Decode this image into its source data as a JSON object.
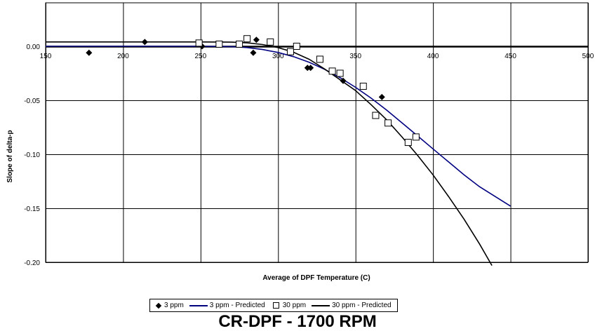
{
  "chart_data": {
    "type": "scatter",
    "title": "CR-DPF - 1700 RPM",
    "xlabel": "Average of DPF Temperature (C)",
    "ylabel": "Slope of delta-p",
    "xlim": [
      150,
      500
    ],
    "ylim": [
      -0.2,
      0.04
    ],
    "x_ticks": [
      150,
      200,
      250,
      300,
      350,
      400,
      450,
      500
    ],
    "y_ticks": [
      0.0,
      -0.05,
      -0.1,
      -0.15,
      -0.2
    ],
    "x_tick_labels": [
      "150",
      "200",
      "250",
      "300",
      "350",
      "400",
      "450",
      "500"
    ],
    "y_tick_labels": [
      "0.00",
      "-0.05",
      "-0.10",
      "-0.15",
      "-0.20"
    ],
    "grid": true,
    "legend_position": "bottom",
    "series": [
      {
        "name": "3 ppm",
        "kind": "markers",
        "marker": "diamond",
        "color": "#000000",
        "points": [
          [
            178,
            -0.006
          ],
          [
            214,
            0.004
          ],
          [
            251,
            0.0
          ],
          [
            284,
            -0.006
          ],
          [
            286,
            0.006
          ],
          [
            319,
            -0.02
          ],
          [
            321,
            -0.02
          ],
          [
            342,
            -0.032
          ],
          [
            367,
            -0.047
          ]
        ]
      },
      {
        "name": "3 ppm - Predicted",
        "kind": "line",
        "color": "#000080",
        "points": [
          [
            150,
            0.0
          ],
          [
            250,
            0.0
          ],
          [
            270,
            -0.0003
          ],
          [
            280,
            -0.0012
          ],
          [
            290,
            -0.003
          ],
          [
            300,
            -0.0057
          ],
          [
            310,
            -0.0096
          ],
          [
            320,
            -0.0148
          ],
          [
            330,
            -0.0213
          ],
          [
            340,
            -0.029
          ],
          [
            350,
            -0.038
          ],
          [
            360,
            -0.048
          ],
          [
            370,
            -0.059
          ],
          [
            380,
            -0.071
          ],
          [
            390,
            -0.083
          ],
          [
            400,
            -0.095
          ],
          [
            410,
            -0.107
          ],
          [
            420,
            -0.119
          ],
          [
            430,
            -0.13
          ],
          [
            440,
            -0.139
          ],
          [
            450,
            -0.148
          ]
        ]
      },
      {
        "name": "30 ppm",
        "kind": "markers",
        "marker": "square",
        "color": "#000000",
        "points": [
          [
            249,
            0.003
          ],
          [
            262,
            0.002
          ],
          [
            275,
            0.002
          ],
          [
            280,
            0.007
          ],
          [
            295,
            0.004
          ],
          [
            308,
            -0.005
          ],
          [
            312,
            0.0
          ],
          [
            327,
            -0.012
          ],
          [
            335,
            -0.023
          ],
          [
            340,
            -0.025
          ],
          [
            355,
            -0.037
          ],
          [
            363,
            -0.064
          ],
          [
            371,
            -0.071
          ],
          [
            384,
            -0.089
          ],
          [
            389,
            -0.084
          ]
        ]
      },
      {
        "name": "30 ppm - Predicted",
        "kind": "line",
        "color": "#000000",
        "points": [
          [
            150,
            0.004
          ],
          [
            250,
            0.004
          ],
          [
            270,
            0.0038
          ],
          [
            280,
            0.0032
          ],
          [
            290,
            0.0016
          ],
          [
            300,
            -0.0012
          ],
          [
            310,
            -0.0055
          ],
          [
            320,
            -0.012
          ],
          [
            330,
            -0.021
          ],
          [
            340,
            -0.031
          ],
          [
            350,
            -0.041
          ],
          [
            360,
            -0.054
          ],
          [
            370,
            -0.068
          ],
          [
            380,
            -0.084
          ],
          [
            390,
            -0.101
          ],
          [
            400,
            -0.119
          ],
          [
            410,
            -0.139
          ],
          [
            420,
            -0.16
          ],
          [
            430,
            -0.183
          ],
          [
            438,
            -0.203
          ]
        ]
      }
    ]
  }
}
